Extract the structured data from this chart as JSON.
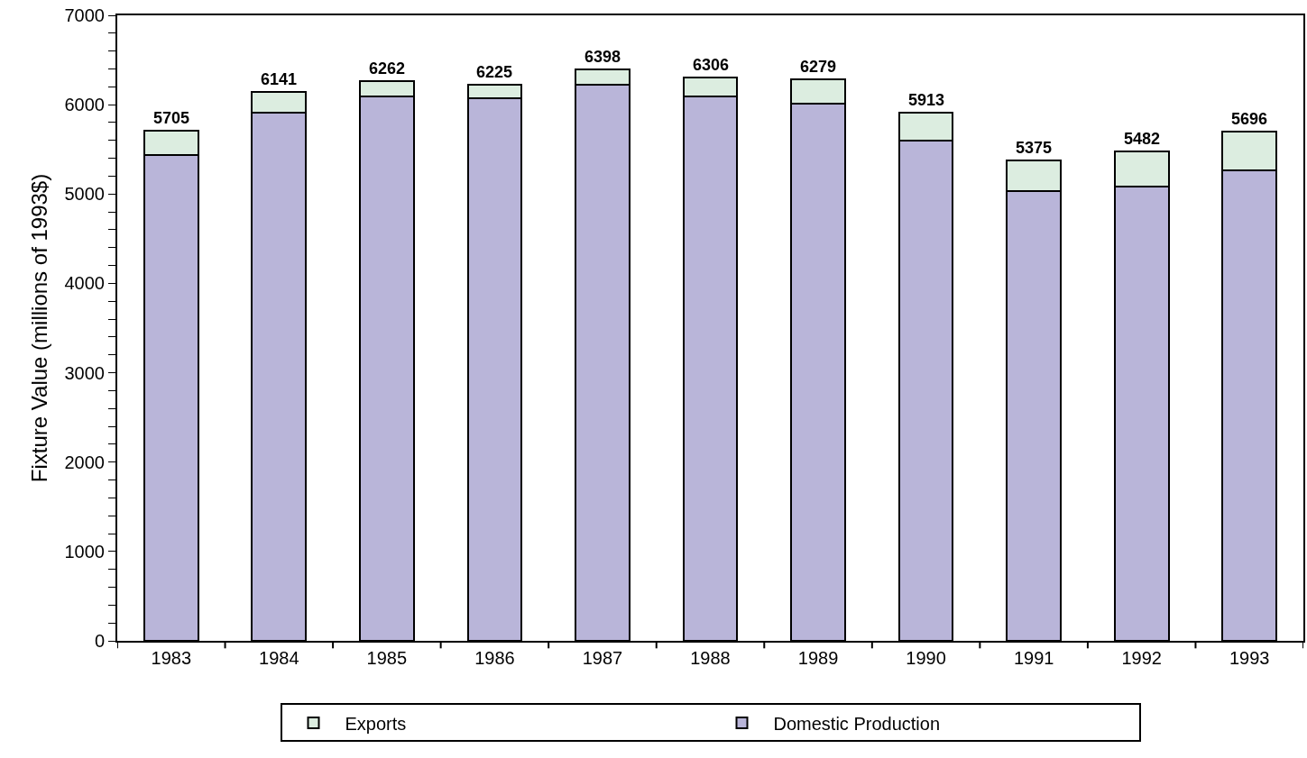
{
  "chart_data": {
    "type": "bar",
    "stacked": true,
    "ylabel": "Fixture Value (millions of 1993$)",
    "categories": [
      "1983",
      "1984",
      "1985",
      "1986",
      "1987",
      "1988",
      "1989",
      "1990",
      "1991",
      "1992",
      "1993"
    ],
    "series": [
      {
        "name": "Domestic Production",
        "color": "#b9b5d9",
        "values": [
          5440,
          5910,
          6090,
          6070,
          6220,
          6090,
          6010,
          5600,
          5030,
          5080,
          5270
        ]
      },
      {
        "name": "Exports",
        "color": "#dcede0",
        "values": [
          265,
          231,
          172,
          155,
          178,
          216,
          269,
          313,
          345,
          402,
          426
        ]
      }
    ],
    "totals": [
      "5705",
      "6141",
      "6262",
      "6225",
      "6398",
      "6306",
      "6279",
      "5913",
      "5375",
      "5482",
      "5696"
    ],
    "ylim": [
      0,
      7000
    ],
    "yticks": [
      0,
      {
        "value": 200,
        "label": null
      },
      {
        "value": 400,
        "label": null
      },
      {
        "value": 600,
        "label": null
      },
      {
        "value": 800,
        "label": null
      },
      1000,
      {
        "value": 1200,
        "label": null
      },
      {
        "value": 1400,
        "label": null
      },
      {
        "value": 1600,
        "label": null
      },
      {
        "value": 1800,
        "label": null
      },
      2000,
      {
        "value": 2200,
        "label": null
      },
      {
        "value": 2400,
        "label": null
      },
      {
        "value": 2600,
        "label": null
      },
      {
        "value": 2800,
        "label": null
      },
      3000,
      {
        "value": 3200,
        "label": null
      },
      {
        "value": 3400,
        "label": null
      },
      {
        "value": 3600,
        "label": null
      },
      {
        "value": 3800,
        "label": null
      },
      4000,
      {
        "value": 4200,
        "label": null
      },
      {
        "value": 4400,
        "label": null
      },
      {
        "value": 4600,
        "label": null
      },
      {
        "value": 4800,
        "label": null
      },
      5000,
      {
        "value": 5200,
        "label": null
      },
      {
        "value": 5400,
        "label": null
      },
      {
        "value": 5600,
        "label": null
      },
      {
        "value": 5800,
        "label": null
      },
      6000,
      {
        "value": 6200,
        "label": null
      },
      {
        "value": 6400,
        "label": null
      },
      {
        "value": 6600,
        "label": null
      },
      {
        "value": 6800,
        "label": null
      },
      7000
    ],
    "grid": false,
    "legend": "bottom"
  }
}
